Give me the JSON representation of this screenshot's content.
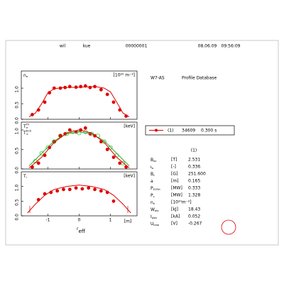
{
  "header": [
    "wil",
    "kue",
    "00000001",
    "08.06.09",
    "09:56:09"
  ],
  "xaxis": {
    "xlim": [
      -1.85,
      1.85
    ],
    "xticks": [
      -1,
      0,
      1
    ],
    "unit": "[m]",
    "label": {
      "main": "r",
      "sub": "eff"
    }
  },
  "chart_data": [
    {
      "type": "scatter",
      "ylabel": [
        {
          "main": "n",
          "sub": "e"
        }
      ],
      "unit": "[10²⁰ m⁻³]",
      "ylim": [
        0,
        1.55
      ],
      "yticks": [
        {
          "value": 0,
          "label": "0.0"
        },
        {
          "value": 0.5,
          "label": "0.5"
        },
        {
          "value": 1,
          "label": "1.0"
        }
      ],
      "series": [
        {
          "kind": "points",
          "color": "#e00000",
          "x": [
            -1.5,
            -1.3,
            -1.1,
            -0.95,
            -0.8,
            -0.6,
            -0.45,
            -0.3,
            -0.1,
            0.05,
            0.2,
            0.35,
            0.5,
            0.7,
            0.9,
            1.1,
            1.3,
            1.5
          ],
          "values": [
            0.15,
            0.3,
            0.55,
            0.85,
            1.0,
            1.0,
            1.02,
            1.05,
            1.03,
            1.05,
            1.07,
            1.02,
            1.05,
            0.95,
            0.8,
            0.55,
            0.3,
            0.1
          ]
        },
        {
          "kind": "line",
          "color": "#e00000",
          "x": [
            -1.6,
            -1.4,
            -1.2,
            -1.0,
            -0.8,
            -0.5,
            0,
            0.5,
            0.8,
            1.0,
            1.2,
            1.4,
            1.6
          ],
          "values": [
            0.08,
            0.2,
            0.5,
            0.85,
            0.98,
            1.02,
            1.03,
            1.05,
            1.0,
            0.88,
            0.55,
            0.2,
            0.08
          ]
        }
      ]
    },
    {
      "type": "scatter",
      "ylabel": [
        {
          "main": "T",
          "sub": "e",
          "sup": "Th"
        },
        {
          "main": "T",
          "sub": "e",
          "sup": "ECE"
        }
      ],
      "unit": "[keV]",
      "ylim": [
        0,
        1.2
      ],
      "yticks": [
        {
          "value": 0,
          "label": "0.0"
        },
        {
          "value": 0.5,
          "label": "0.5"
        },
        {
          "value": 1,
          "label": "1.0"
        }
      ],
      "series": [
        {
          "kind": "open",
          "color": "#33cc33",
          "x": [
            -1.4,
            -1.2,
            -1.0,
            -0.8,
            -0.6,
            -0.4,
            -0.2,
            0,
            0.2,
            0.4,
            0.6,
            0.8,
            1.0,
            1.2,
            1.4
          ],
          "values": [
            0.2,
            0.4,
            0.55,
            0.7,
            0.85,
            0.9,
            0.95,
            0.92,
            0.95,
            0.9,
            0.85,
            0.7,
            0.55,
            0.35,
            0.15
          ]
        },
        {
          "kind": "points",
          "color": "#e00000",
          "x": [
            -1.5,
            -1.3,
            -1.1,
            -0.95,
            -0.8,
            -0.6,
            -0.45,
            -0.3,
            -0.1,
            0.05,
            0.2,
            0.35,
            0.5,
            0.7,
            0.9,
            1.1,
            1.3,
            1.5
          ],
          "values": [
            0.05,
            0.15,
            0.35,
            0.55,
            0.7,
            0.85,
            0.9,
            1.0,
            0.95,
            1.0,
            1.05,
            0.9,
            0.85,
            0.7,
            0.5,
            0.3,
            0.15,
            0.05
          ]
        },
        {
          "kind": "line",
          "color": "#33aa33",
          "x": [
            -1.6,
            -1.2,
            -0.8,
            -0.4,
            0,
            0.4,
            0.8,
            1.2,
            1.6
          ],
          "values": [
            0.08,
            0.4,
            0.72,
            0.9,
            0.95,
            0.9,
            0.72,
            0.4,
            0.08
          ]
        },
        {
          "kind": "line",
          "color": "#e00000",
          "x": [
            -1.6,
            -1.2,
            -0.8,
            -0.4,
            0,
            0.4,
            0.8,
            1.2,
            1.6
          ],
          "values": [
            0.03,
            0.3,
            0.68,
            0.92,
            1.0,
            0.92,
            0.68,
            0.3,
            0.03
          ]
        }
      ]
    },
    {
      "type": "scatter",
      "ylabel": [
        {
          "main": "T",
          "sub": "i"
        }
      ],
      "unit": "[keV]",
      "ylim": [
        0,
        1.5
      ],
      "yticks": [
        {
          "value": 0,
          "label": "0.0"
        },
        {
          "value": 0.5,
          "label": "0.5"
        },
        {
          "value": 1,
          "label": "1.0"
        }
      ],
      "series": [
        {
          "kind": "points",
          "color": "#e00000",
          "x": [
            -1.3,
            -1.1,
            -0.9,
            -0.7,
            -0.5,
            -0.3,
            -0.1,
            0.1,
            0.3,
            0.5,
            0.7,
            0.9,
            1.1
          ],
          "values": [
            0.55,
            0.75,
            0.8,
            0.85,
            0.9,
            0.9,
            0.95,
            0.92,
            0.95,
            0.9,
            0.85,
            0.8,
            0.5
          ]
        },
        {
          "kind": "line",
          "color": "#e00000",
          "x": [
            -1.65,
            -1.4,
            -1.1,
            -0.8,
            -0.4,
            0,
            0.4,
            0.8,
            1.1,
            1.4,
            1.65
          ],
          "values": [
            0.1,
            0.4,
            0.7,
            0.9,
            1.0,
            1.05,
            1.0,
            0.9,
            0.7,
            0.4,
            0.1
          ]
        }
      ]
    }
  ],
  "info": {
    "title": "W7-AS",
    "subtitle": "Profile Database",
    "legend": {
      "index": "(1)",
      "shot": "34609",
      "time": "0.300 s"
    },
    "column": "(1)",
    "params": [
      {
        "name": {
          "main": "B",
          "sub": "ax"
        },
        "unit": "[T]",
        "value": "2.531"
      },
      {
        "name": {
          "main": "ι",
          "sub": "a"
        },
        "unit": "[-]",
        "value": "0.336"
      },
      {
        "name": {
          "main": "B",
          "sub": "c"
        },
        "unit": "[G]",
        "value": "251.600"
      },
      {
        "name": {
          "main": "a"
        },
        "unit": "[m]",
        "value": "0.165"
      },
      {
        "name": {
          "main": "P",
          "sub": "ECRH"
        },
        "unit": "[MW]",
        "value": "0.333"
      },
      {
        "name": {
          "main": "P",
          "sub": "s"
        },
        "unit": "[MW]",
        "value": "1.328"
      },
      {
        "name": {
          "main": "n",
          "sub": "e"
        },
        "unit": "[10²⁰m⁻³]"
      },
      {
        "name": {
          "main": "W",
          "sub": "dia"
        },
        "unit": "[kJ]",
        "value": "18.43"
      },
      {
        "name": {
          "main": "I",
          "sub": "plas"
        },
        "unit": "[kA]",
        "value": "0.052"
      },
      {
        "name": {
          "main": "U",
          "sub": "loop"
        },
        "unit": "[V]",
        "value": "-0.267"
      }
    ]
  }
}
